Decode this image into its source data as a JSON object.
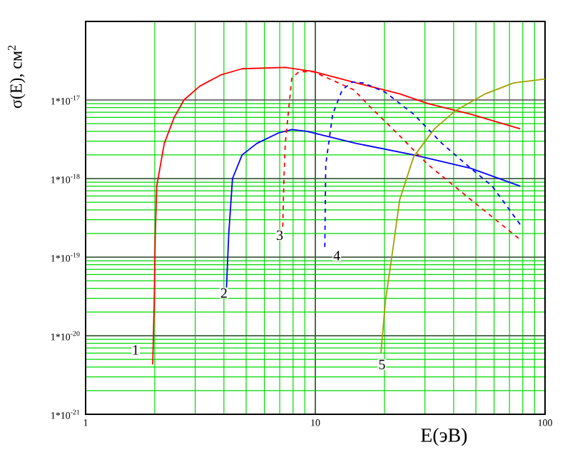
{
  "chart_data": {
    "type": "line",
    "xlabel": "E(эВ)",
    "ylabel": "σ(E), см$^{2}$",
    "log": "xy",
    "grid": true,
    "marker": "none",
    "xlim": [
      1,
      100
    ],
    "xticks": [
      1,
      10,
      100
    ],
    "ylim": [
      1e-21,
      1e-16
    ],
    "yticks": [
      {
        "value": 1e-21,
        "label": "1*10$^{-21}$"
      },
      {
        "value": 1e-20,
        "label": "1*10$^{-20}$"
      },
      {
        "value": 1e-19,
        "label": "1*10$^{-19}$"
      },
      {
        "value": 1e-18,
        "label": "1*10$^{-18}$"
      },
      {
        "value": 1e-17,
        "label": "1*10$^{-17}$"
      }
    ],
    "series": [
      {
        "color": "#ff0000",
        "line_style": "solid",
        "x": [
          1.96,
          1.99,
          2.01,
          2.04,
          2.2,
          2.43,
          2.68,
          3.14,
          3.9,
          4.8,
          7.4,
          9.8,
          15.1,
          23.3,
          31,
          47.5,
          78
        ],
        "values": [
          4.3e-21,
          2.8e-20,
          1.9e-19,
          8e-19,
          2.8e-18,
          6e-18,
          1e-17,
          1.5e-17,
          2.1e-17,
          2.5e-17,
          2.6e-17,
          2.3e-17,
          1.65e-17,
          1.2e-17,
          9e-18,
          6.6e-18,
          4.3e-18
        ]
      },
      {
        "color": "#0000ff",
        "line_style": "solid",
        "x": [
          4.1,
          4.2,
          4.36,
          4.8,
          5.56,
          6.9,
          7.9,
          9.2,
          15.1,
          26.8,
          47.5,
          78
        ],
        "values": [
          3.8e-20,
          2e-19,
          1e-18,
          2e-18,
          2.8e-18,
          3.8e-18,
          4.2e-18,
          4e-18,
          2.8e-18,
          2e-18,
          1.35e-18,
          8e-19
        ]
      },
      {
        "color": "#ff0000",
        "line_style": "dashed",
        "x": [
          7.2,
          7.3,
          7.4,
          7.9,
          8.5,
          9.8,
          14.7,
          17.4,
          23.3,
          31,
          47.5,
          78
        ],
        "values": [
          1.9e-19,
          1e-18,
          2.8e-18,
          1.9e-17,
          2.3e-17,
          2.3e-17,
          1.35e-17,
          8.1e-18,
          3.5e-18,
          1.5e-18,
          5.4e-19,
          1.67e-19
        ]
      },
      {
        "color": "#0000ff",
        "line_style": "dashed",
        "x": [
          11.0,
          11.1,
          11.9,
          13.1,
          14.5,
          16.2,
          20.2,
          26.8,
          35.6,
          47.5,
          58.9,
          78
        ],
        "values": [
          1.35e-19,
          1.5e-18,
          6.6e-18,
          1.35e-17,
          1.7e-17,
          1.65e-17,
          1.25e-17,
          6.6e-18,
          2.8e-18,
          1.35e-18,
          8e-19,
          2.6e-19
        ]
      },
      {
        "color": "#a0a000",
        "line_style": "solid",
        "x": [
          19.3,
          20.2,
          21.7,
          23.3,
          26.8,
          33,
          41,
          55,
          73,
          100
        ],
        "values": [
          6e-21,
          2.8e-20,
          1.2e-19,
          5.4e-19,
          1.9e-18,
          4.3e-18,
          7.4e-18,
          1.2e-17,
          1.65e-17,
          1.85e-17
        ]
      }
    ],
    "annotations": [
      {
        "text": "1",
        "x": 1.65,
        "y": 6.6e-21
      },
      {
        "text": "2",
        "x": 4.0,
        "y": 3.5e-20
      },
      {
        "text": "3",
        "x": 7.0,
        "y": 1.9e-19
      },
      {
        "text": "4",
        "x": 12.4,
        "y": 1.05e-19
      },
      {
        "text": "5",
        "x": 19.5,
        "y": 4.3e-21
      }
    ]
  }
}
